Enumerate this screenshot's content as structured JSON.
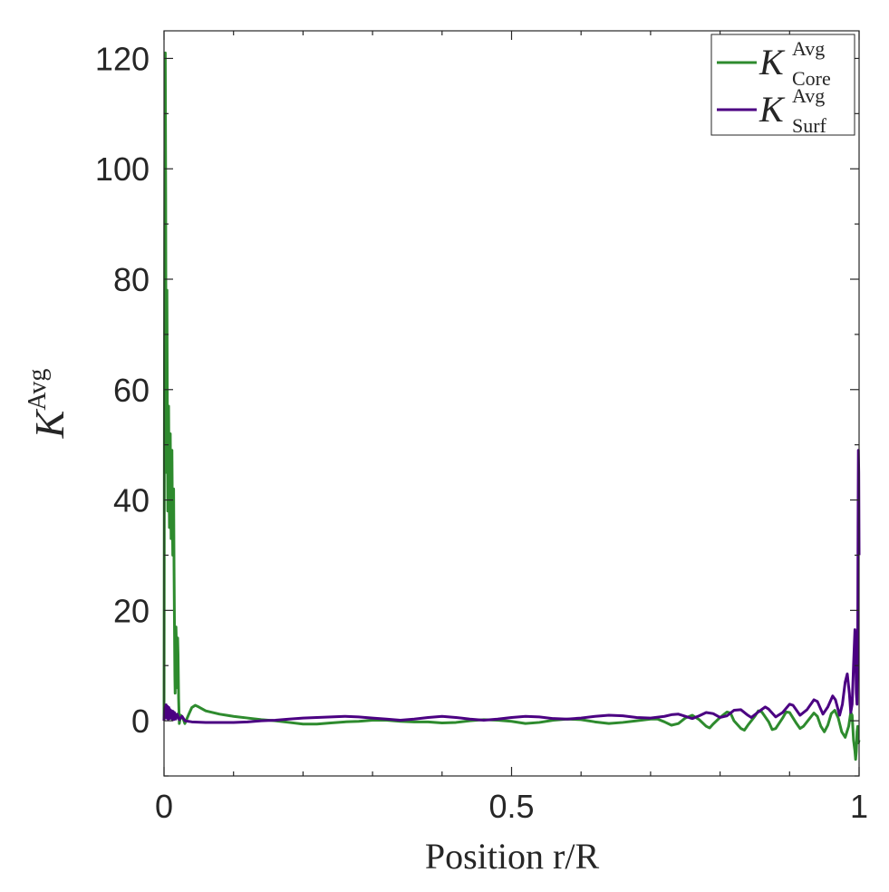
{
  "chart_data": {
    "type": "line",
    "title": "",
    "xlabel": "Position r/R",
    "ylabel": {
      "base": "K",
      "sup": "Avg"
    },
    "xlim": [
      0,
      1
    ],
    "ylim": [
      -10,
      125
    ],
    "xticks": [
      0,
      0.5,
      1
    ],
    "xtick_labels": [
      "0",
      "0.5",
      "1"
    ],
    "xminor": [
      0.1,
      0.2,
      0.3,
      0.4,
      0.6,
      0.7,
      0.8,
      0.9
    ],
    "yticks": [
      0,
      20,
      40,
      60,
      80,
      100,
      120
    ],
    "ytick_labels": [
      "0",
      "20",
      "40",
      "60",
      "80",
      "100",
      "120"
    ],
    "yminor": [
      -10,
      10,
      30,
      50,
      70,
      90,
      110
    ],
    "grid": false,
    "legend_position": "top-right",
    "series": [
      {
        "name": "K_Core^Avg",
        "legend": {
          "base": "K",
          "sup": "Avg",
          "sub": "Core"
        },
        "color": "#2e8b2e",
        "points": [
          [
            0.0,
            0.0
          ],
          [
            0.0006,
            60
          ],
          [
            0.0012,
            100
          ],
          [
            0.0018,
            121
          ],
          [
            0.0024,
            95
          ],
          [
            0.003,
            45
          ],
          [
            0.0036,
            70
          ],
          [
            0.0042,
            78
          ],
          [
            0.0048,
            55
          ],
          [
            0.0054,
            38
          ],
          [
            0.006,
            52
          ],
          [
            0.0066,
            57
          ],
          [
            0.0072,
            45
          ],
          [
            0.0078,
            35
          ],
          [
            0.0084,
            48
          ],
          [
            0.009,
            52
          ],
          [
            0.0096,
            42
          ],
          [
            0.0102,
            33
          ],
          [
            0.0108,
            46
          ],
          [
            0.0114,
            49
          ],
          [
            0.012,
            38
          ],
          [
            0.0126,
            30
          ],
          [
            0.0132,
            40
          ],
          [
            0.0138,
            42
          ],
          [
            0.0144,
            28
          ],
          [
            0.015,
            18
          ],
          [
            0.0156,
            8
          ],
          [
            0.016,
            5
          ],
          [
            0.0166,
            12
          ],
          [
            0.0172,
            17
          ],
          [
            0.0178,
            14
          ],
          [
            0.0184,
            6
          ],
          [
            0.019,
            10
          ],
          [
            0.0196,
            15
          ],
          [
            0.0202,
            12
          ],
          [
            0.021,
            4
          ],
          [
            0.022,
            -0.5
          ],
          [
            0.024,
            1
          ],
          [
            0.027,
            0.5
          ],
          [
            0.03,
            -0.5
          ],
          [
            0.035,
            1
          ],
          [
            0.04,
            2.4
          ],
          [
            0.045,
            2.8
          ],
          [
            0.05,
            2.5
          ],
          [
            0.06,
            1.8
          ],
          [
            0.08,
            1.2
          ],
          [
            0.1,
            0.8
          ],
          [
            0.12,
            0.5
          ],
          [
            0.14,
            0.2
          ],
          [
            0.16,
            0.0
          ],
          [
            0.18,
            -0.3
          ],
          [
            0.2,
            -0.6
          ],
          [
            0.22,
            -0.6
          ],
          [
            0.24,
            -0.4
          ],
          [
            0.26,
            -0.2
          ],
          [
            0.28,
            -0.1
          ],
          [
            0.3,
            0.1
          ],
          [
            0.32,
            0.1
          ],
          [
            0.34,
            -0.1
          ],
          [
            0.36,
            -0.2
          ],
          [
            0.38,
            -0.2
          ],
          [
            0.4,
            -0.4
          ],
          [
            0.42,
            -0.3
          ],
          [
            0.44,
            0.0
          ],
          [
            0.46,
            0.2
          ],
          [
            0.48,
            0.1
          ],
          [
            0.5,
            -0.1
          ],
          [
            0.52,
            -0.5
          ],
          [
            0.54,
            -0.3
          ],
          [
            0.56,
            0.1
          ],
          [
            0.58,
            0.3
          ],
          [
            0.6,
            0.2
          ],
          [
            0.62,
            -0.2
          ],
          [
            0.64,
            -0.5
          ],
          [
            0.66,
            -0.3
          ],
          [
            0.68,
            0.0
          ],
          [
            0.7,
            0.3
          ],
          [
            0.71,
            0.3
          ],
          [
            0.72,
            -0.2
          ],
          [
            0.73,
            -0.8
          ],
          [
            0.74,
            -0.5
          ],
          [
            0.75,
            0.5
          ],
          [
            0.76,
            1.0
          ],
          [
            0.77,
            0.2
          ],
          [
            0.78,
            -1.0
          ],
          [
            0.785,
            -1.3
          ],
          [
            0.79,
            -0.6
          ],
          [
            0.8,
            0.6
          ],
          [
            0.81,
            1.6
          ],
          [
            0.815,
            1.4
          ],
          [
            0.82,
            0.0
          ],
          [
            0.83,
            -1.4
          ],
          [
            0.835,
            -1.7
          ],
          [
            0.84,
            -0.8
          ],
          [
            0.85,
            0.8
          ],
          [
            0.855,
            1.8
          ],
          [
            0.86,
            1.6
          ],
          [
            0.87,
            -0.2
          ],
          [
            0.875,
            -1.6
          ],
          [
            0.88,
            -1.4
          ],
          [
            0.89,
            0.5
          ],
          [
            0.895,
            1.6
          ],
          [
            0.9,
            1.5
          ],
          [
            0.91,
            -0.5
          ],
          [
            0.915,
            -1.4
          ],
          [
            0.92,
            -1.0
          ],
          [
            0.93,
            0.6
          ],
          [
            0.935,
            1.4
          ],
          [
            0.94,
            0.8
          ],
          [
            0.945,
            -1.0
          ],
          [
            0.95,
            -2.0
          ],
          [
            0.955,
            -0.8
          ],
          [
            0.96,
            1.3
          ],
          [
            0.965,
            1.9
          ],
          [
            0.97,
            0.5
          ],
          [
            0.975,
            -2.0
          ],
          [
            0.98,
            -3.0
          ],
          [
            0.985,
            -1.0
          ],
          [
            0.988,
            1.5
          ],
          [
            0.99,
            1.0
          ],
          [
            0.992,
            -3.5
          ],
          [
            0.994,
            -5.5
          ],
          [
            0.995,
            -7.0
          ],
          [
            0.996,
            -5.5
          ],
          [
            0.997,
            -2.0
          ],
          [
            0.998,
            -1.0
          ],
          [
            0.9985,
            -3.0
          ],
          [
            0.999,
            -4.0
          ],
          [
            1.0,
            -3.5
          ]
        ]
      },
      {
        "name": "K_Surf^Avg",
        "legend": {
          "base": "K",
          "sup": "Avg",
          "sub": "Surf"
        },
        "color": "#4b0082",
        "points": [
          [
            0.0,
            0.0
          ],
          [
            0.001,
            2.4
          ],
          [
            0.002,
            0.6
          ],
          [
            0.003,
            2.9
          ],
          [
            0.004,
            0.5
          ],
          [
            0.005,
            2.6
          ],
          [
            0.006,
            0.3
          ],
          [
            0.007,
            2.4
          ],
          [
            0.008,
            0.4
          ],
          [
            0.009,
            2.0
          ],
          [
            0.01,
            0.5
          ],
          [
            0.011,
            1.8
          ],
          [
            0.012,
            0.3
          ],
          [
            0.013,
            1.7
          ],
          [
            0.014,
            0.2
          ],
          [
            0.015,
            1.5
          ],
          [
            0.017,
            0.3
          ],
          [
            0.019,
            1.2
          ],
          [
            0.022,
            0.2
          ],
          [
            0.026,
            0.8
          ],
          [
            0.03,
            0.0
          ],
          [
            0.04,
            -0.2
          ],
          [
            0.06,
            -0.3
          ],
          [
            0.08,
            -0.3
          ],
          [
            0.1,
            -0.3
          ],
          [
            0.12,
            -0.2
          ],
          [
            0.14,
            0.0
          ],
          [
            0.16,
            0.1
          ],
          [
            0.18,
            0.3
          ],
          [
            0.2,
            0.5
          ],
          [
            0.22,
            0.6
          ],
          [
            0.24,
            0.7
          ],
          [
            0.26,
            0.8
          ],
          [
            0.28,
            0.7
          ],
          [
            0.3,
            0.5
          ],
          [
            0.32,
            0.3
          ],
          [
            0.34,
            0.1
          ],
          [
            0.36,
            0.3
          ],
          [
            0.38,
            0.6
          ],
          [
            0.4,
            0.8
          ],
          [
            0.42,
            0.6
          ],
          [
            0.44,
            0.3
          ],
          [
            0.46,
            0.1
          ],
          [
            0.48,
            0.3
          ],
          [
            0.5,
            0.6
          ],
          [
            0.52,
            0.8
          ],
          [
            0.54,
            0.7
          ],
          [
            0.56,
            0.4
          ],
          [
            0.58,
            0.3
          ],
          [
            0.6,
            0.5
          ],
          [
            0.62,
            0.8
          ],
          [
            0.64,
            1.0
          ],
          [
            0.66,
            0.9
          ],
          [
            0.68,
            0.6
          ],
          [
            0.7,
            0.5
          ],
          [
            0.72,
            0.8
          ],
          [
            0.73,
            1.1
          ],
          [
            0.74,
            1.2
          ],
          [
            0.75,
            0.8
          ],
          [
            0.76,
            0.4
          ],
          [
            0.77,
            0.9
          ],
          [
            0.78,
            1.5
          ],
          [
            0.79,
            1.3
          ],
          [
            0.8,
            0.6
          ],
          [
            0.81,
            0.9
          ],
          [
            0.82,
            1.9
          ],
          [
            0.83,
            2.0
          ],
          [
            0.84,
            1.0
          ],
          [
            0.845,
            0.6
          ],
          [
            0.855,
            1.6
          ],
          [
            0.865,
            2.5
          ],
          [
            0.87,
            2.1
          ],
          [
            0.88,
            0.7
          ],
          [
            0.89,
            1.5
          ],
          [
            0.9,
            3.0
          ],
          [
            0.905,
            2.8
          ],
          [
            0.915,
            1.0
          ],
          [
            0.925,
            2.0
          ],
          [
            0.935,
            3.8
          ],
          [
            0.94,
            3.5
          ],
          [
            0.948,
            1.2
          ],
          [
            0.955,
            2.5
          ],
          [
            0.962,
            4.5
          ],
          [
            0.966,
            3.8
          ],
          [
            0.972,
            1.0
          ],
          [
            0.976,
            3.0
          ],
          [
            0.98,
            7.0
          ],
          [
            0.983,
            8.5
          ],
          [
            0.986,
            5.0
          ],
          [
            0.988,
            1.5
          ],
          [
            0.99,
            3.0
          ],
          [
            0.992,
            10.0
          ],
          [
            0.994,
            16.5
          ],
          [
            0.995,
            14.0
          ],
          [
            0.996,
            5.0
          ],
          [
            0.997,
            3.0
          ],
          [
            0.998,
            15.0
          ],
          [
            0.9985,
            35.0
          ],
          [
            0.999,
            49.0
          ],
          [
            0.9995,
            45.0
          ],
          [
            1.0,
            30.0
          ]
        ]
      }
    ]
  }
}
